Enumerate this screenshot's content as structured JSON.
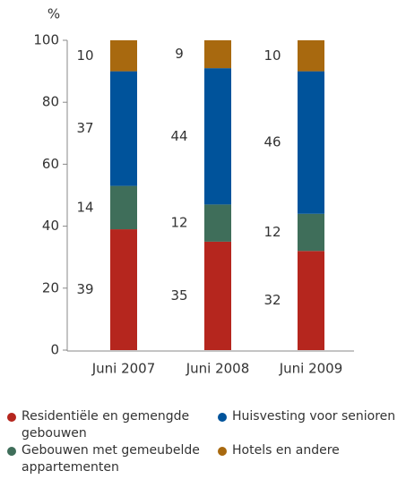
{
  "chart_data": {
    "type": "stacked_bar",
    "y_label": "%",
    "categories": [
      "Juni 2007",
      "Juni 2008",
      "Juni 2009"
    ],
    "series": [
      {
        "name": "Residentiële en gemengde gebouwen",
        "color": "#b5261e",
        "values": [
          39,
          35,
          32
        ]
      },
      {
        "name": "Gebouwen met gemeubelde appartementen",
        "color": "#3f6e5a",
        "values": [
          14,
          12,
          12
        ]
      },
      {
        "name": "Huisvesting voor senioren",
        "color": "#00539b",
        "values": [
          37,
          44,
          46
        ]
      },
      {
        "name": "Hotels en andere",
        "color": "#a8690f",
        "values": [
          10,
          9,
          10
        ]
      }
    ],
    "ylim": [
      0,
      100
    ],
    "yticks": [
      0,
      20,
      40,
      60,
      80,
      100
    ]
  }
}
